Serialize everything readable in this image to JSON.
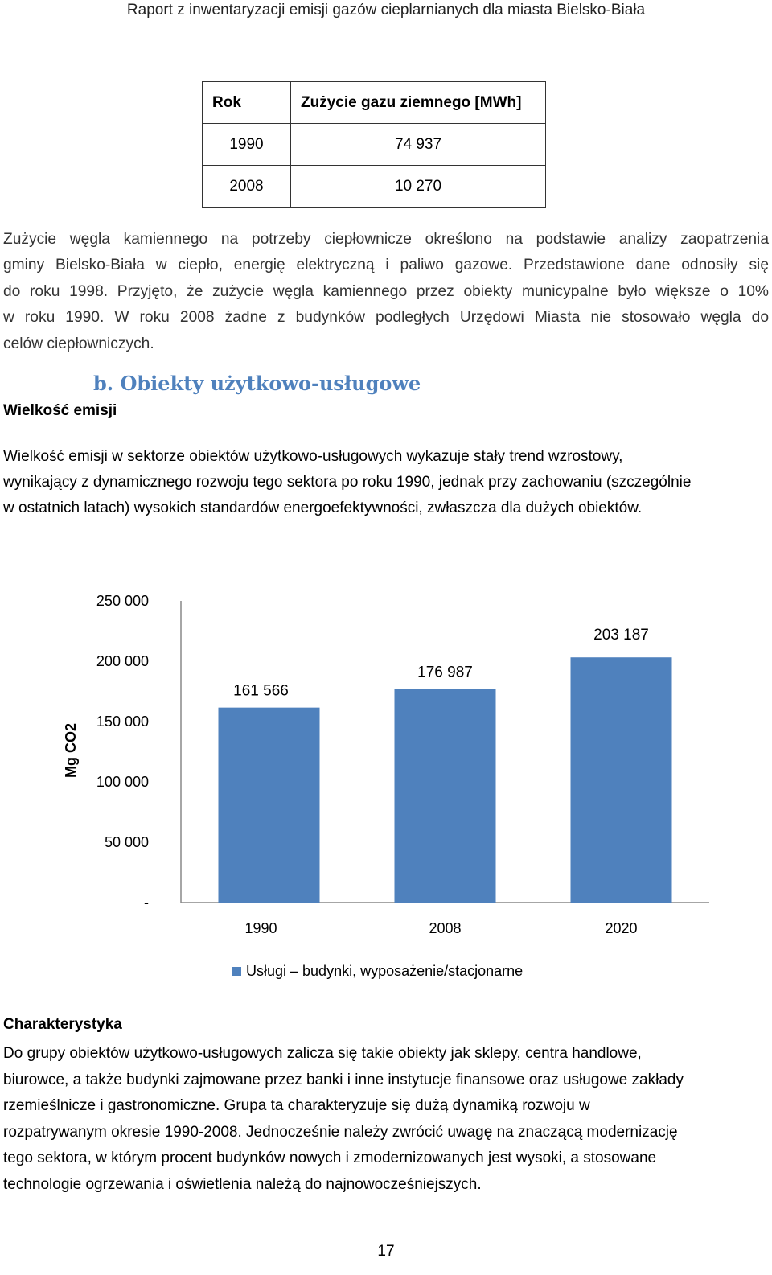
{
  "header": {
    "title": "Raport z inwentaryzacji emisji gazów cieplarnianych dla miasta Bielsko-Biała"
  },
  "gas_table": {
    "headers": [
      "Rok",
      "Zużycie gazu ziemnego [MWh]"
    ],
    "rows": [
      [
        "1990",
        "74 937"
      ],
      [
        "2008",
        "10 270"
      ]
    ]
  },
  "coal_paragraph": {
    "lines": [
      "Zużycie węgla kamiennego na potrzeby ciepłownicze określono na podstawie analizy zaopatrzenia",
      "gminy Bielsko-Biała w ciepło, energię elektryczną i paliwo gazowe. Przedstawione dane odnosiły się",
      "do roku 1998. Przyjęto, że zużycie węgla kamiennego przez obiekty municypalne było większe o 10%",
      "w roku 1990. W roku 2008 żadne z budynków podległych Urzędowi Miasta nie stosowało węgla do",
      "celów ciepłowniczych."
    ]
  },
  "section": {
    "title": "b.  Obiekty użytkowo-usługowe",
    "subheading": "Wielkość emisji",
    "intro_lines": [
      "Wielkość emisji w sektorze obiektów użytkowo-usługowych wykazuje stały trend wzrostowy,",
      "wynikający z dynamicznego rozwoju tego sektora po roku 1990, jednak przy zachowaniu (szczególnie",
      "w ostatnich latach) wysokich standardów energoefektywności, zwłaszcza dla dużych obiektów."
    ]
  },
  "chart_data": {
    "type": "bar",
    "categories": [
      "1990",
      "2008",
      "2020"
    ],
    "series": [
      {
        "name": "Usługi – budynki, wyposażenie/stacjonarne",
        "values": [
          161566,
          176987,
          203187
        ]
      }
    ],
    "data_labels": [
      "161 566",
      "176 987",
      "203 187"
    ],
    "ylabel": "Mg CO2",
    "ylim": [
      0,
      250000
    ],
    "yticks": [
      0,
      50000,
      100000,
      150000,
      200000,
      250000
    ],
    "ytick_labels": [
      "-",
      "50 000",
      "100 000",
      "150 000",
      "200 000",
      "250 000"
    ],
    "bar_color": "#4f81bd",
    "grid": false,
    "legend_position": "bottom"
  },
  "characteristics": {
    "title": "Charakterystyka",
    "lines": [
      "Do grupy obiektów użytkowo-usługowych zalicza się takie obiekty jak sklepy, centra handlowe,",
      "biurowce, a także budynki zajmowane przez banki i inne instytucje finansowe oraz usługowe zakłady",
      "rzemieślnicze i gastronomiczne. Grupa ta charakteryzuje się dużą dynamiką rozwoju w",
      "rozpatrywanym okresie 1990-2008. Jednocześnie należy zwrócić uwagę na znaczącą modernizację",
      "tego sektora, w którym procent budynków nowych i zmodernizowanych jest wysoki, a stosowane",
      "technologie ogrzewania i oświetlenia należą do najnowocześniejszych."
    ]
  },
  "footer": {
    "page_number": "17"
  }
}
